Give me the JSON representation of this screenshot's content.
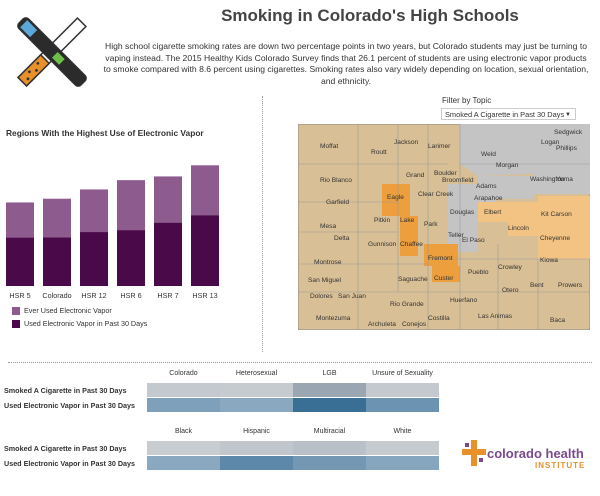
{
  "title": "Smoking in Colorado's High Schools",
  "intro": "High school cigarette smoking rates are down two percentage points in two years, but Colorado students may just be turning to vaping instead. The 2015 Healthy Kids Colorado Survey finds that 26.1 percent of students are using electronic vapor products to smoke compared with 8.6 percent using cigarettes. Smoking rates also vary widely depending on location, sexual orientation, and ethnicity.",
  "colors": {
    "ever": "#8e5b8e",
    "past30": "#4a0a4a",
    "accent": "#f0a030",
    "county_base": "#d9bf95",
    "county_gray": "#c4c4c4",
    "county_orange": "#ec9f3c",
    "county_light_orange": "#f3c384"
  },
  "chart_data": {
    "type": "bar",
    "title": "Regions With the Highest Use of Electronic Vapor",
    "categories": [
      "HSR 5",
      "Colorado",
      "HSR 12",
      "HSR 6",
      "HSR 7",
      "HSR 13"
    ],
    "series": [
      {
        "name": "Ever Used Electronic Vapor",
        "values": [
          45.0,
          47.0,
          52.0,
          57.0,
          59.0,
          65.0
        ]
      },
      {
        "name": "Used Electronic Vapor in Past 30 Days",
        "values": [
          26.0,
          26.1,
          29.0,
          30.0,
          34.0,
          38.0
        ]
      }
    ],
    "ylim": [
      0,
      70
    ],
    "legend": "bottom-left"
  },
  "filter": {
    "label": "Filter by Topic",
    "selected": "Smoked A Cigarette in Past 30 Days"
  },
  "map": {
    "counties": [
      "Moffat",
      "Routt",
      "Jackson",
      "Larimer",
      "Weld",
      "Logan",
      "Sedgwick",
      "Phillips",
      "Rio Blanco",
      "Grand",
      "Boulder",
      "Broomfield",
      "Morgan",
      "Washington",
      "Yuma",
      "Garfield",
      "Eagle",
      "Clear Creek",
      "Adams",
      "Arapahoe",
      "Mesa",
      "Pitkin",
      "Lake",
      "Park",
      "Douglas",
      "Elbert",
      "Kit Carson",
      "Delta",
      "Gunnison",
      "Chaffee",
      "Teller",
      "El Paso",
      "Lincoln",
      "Cheyenne",
      "Montrose",
      "Fremont",
      "Kiowa",
      "San Miguel",
      "Custer",
      "Pueblo",
      "Crowley",
      "Dolores",
      "San Juan",
      "Saguache",
      "Otero",
      "Bent",
      "Prowers",
      "Rio Grande",
      "Huerfano",
      "Montezuma",
      "Archuleta",
      "Conejos",
      "Costilla",
      "Las Animas",
      "Baca"
    ]
  },
  "heatmap1": {
    "rows": [
      "Smoked A Cigarette in Past 30 Days",
      "Used Electronic Vapor in Past 30 Days"
    ],
    "columns": [
      "Colorado",
      "Heterosexual",
      "LGB",
      "Unsure of Sexuality"
    ],
    "colors": [
      [
        "#c4c9cf",
        "#c6cbd0",
        "#9aa6b2",
        "#c4c9cf"
      ],
      [
        "#7fa0bb",
        "#8aa8c0",
        "#3a6f95",
        "#6d93b3"
      ]
    ]
  },
  "heatmap2": {
    "rows": [
      "Smoked A Cigarette in Past 30 Days",
      "Used Electronic Vapor in Past 30 Days"
    ],
    "columns": [
      "Black",
      "Hispanic",
      "Multiracial",
      "White"
    ],
    "colors": [
      [
        "#c8cdd2",
        "#c0c6cc",
        "#b9c0c7",
        "#c6cbd0"
      ],
      [
        "#8aa8c0",
        "#5e88aa",
        "#7497b4",
        "#86a5be"
      ]
    ]
  },
  "logo": {
    "name": "colorado health",
    "sub": "INSTITUTE"
  }
}
